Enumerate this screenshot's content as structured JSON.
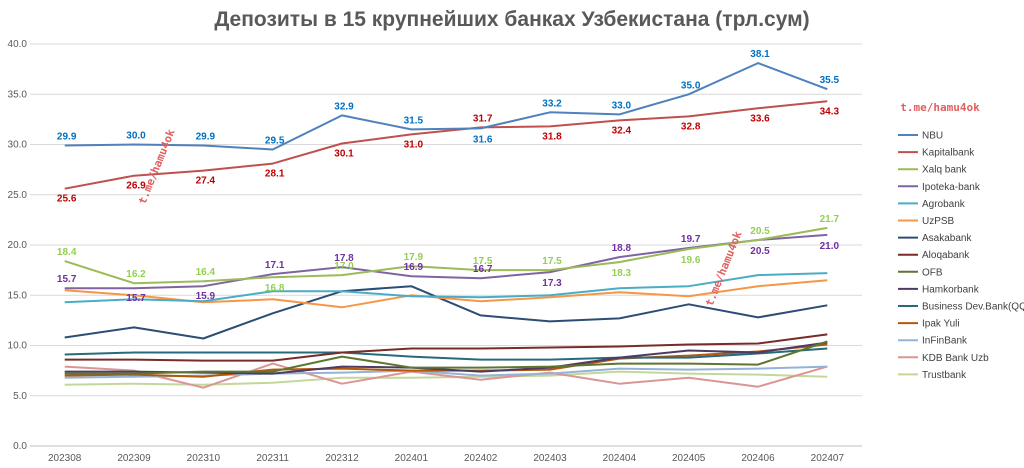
{
  "chart_data": {
    "type": "line",
    "title": "Депозиты в 15 крупнейших банках Узбекистана (трл.сум)",
    "xlabel": "",
    "ylabel": "",
    "ylim": [
      0,
      40
    ],
    "yticks": [
      "0.0",
      "5.0",
      "10.0",
      "15.0",
      "20.0",
      "25.0",
      "30.0",
      "35.0",
      "40.0"
    ],
    "grid": true,
    "legend_position": "right",
    "categories": [
      "202308",
      "202309",
      "202310",
      "202311",
      "202312",
      "202401",
      "202402",
      "202403",
      "202404",
      "202405",
      "202406",
      "202407"
    ],
    "series": [
      {
        "name": "NBU",
        "color": "#4f81bd",
        "values": [
          29.9,
          30.0,
          29.9,
          29.5,
          32.9,
          31.5,
          31.6,
          33.2,
          33.0,
          35.0,
          38.1,
          35.5
        ],
        "labels": true,
        "label_color": "#0070c0",
        "label_pos": "above"
      },
      {
        "name": "Kapitalbank",
        "color": "#c0504d",
        "values": [
          25.6,
          26.9,
          27.4,
          28.1,
          30.1,
          31.0,
          31.7,
          31.8,
          32.4,
          32.8,
          33.6,
          34.3
        ],
        "labels": true,
        "label_color": "#c00000",
        "label_pos": "below"
      },
      {
        "name": "Xalq bank",
        "color": "#9bbb59",
        "values": [
          18.4,
          16.2,
          16.4,
          16.8,
          17.0,
          17.9,
          17.5,
          17.5,
          18.3,
          19.6,
          20.5,
          21.7
        ],
        "labels": true,
        "label_color": "#92d050",
        "label_pos": "above"
      },
      {
        "name": "Ipoteka-bank",
        "color": "#8064a2",
        "values": [
          15.7,
          15.7,
          15.9,
          17.1,
          17.8,
          16.9,
          16.7,
          17.3,
          18.8,
          19.7,
          20.5,
          21.0
        ],
        "labels": true,
        "label_color": "#7030a0",
        "label_pos": "above"
      },
      {
        "name": "Agrobank",
        "color": "#4bacc6",
        "values": [
          14.3,
          14.6,
          14.4,
          15.4,
          15.4,
          14.9,
          14.8,
          15.0,
          15.7,
          15.9,
          17.0,
          17.2
        ],
        "labels": false
      },
      {
        "name": "UzPSB",
        "color": "#f79646",
        "values": [
          15.5,
          15.0,
          14.3,
          14.6,
          13.8,
          15.0,
          14.4,
          14.8,
          15.3,
          14.9,
          15.9,
          16.5
        ],
        "labels": false
      },
      {
        "name": "Asakabank",
        "color": "#2c4d75",
        "values": [
          10.8,
          11.8,
          10.7,
          13.2,
          15.4,
          15.9,
          13.0,
          12.4,
          12.7,
          14.1,
          12.8,
          14.0
        ],
        "labels": false
      },
      {
        "name": "Aloqabank",
        "color": "#772c2a",
        "values": [
          8.6,
          8.6,
          8.5,
          8.5,
          9.3,
          9.7,
          9.7,
          9.8,
          9.9,
          10.1,
          10.2,
          11.1
        ],
        "labels": false
      },
      {
        "name": "OFB",
        "color": "#5f7530",
        "values": [
          7.2,
          7.2,
          7.4,
          7.4,
          8.9,
          7.8,
          7.8,
          7.9,
          8.2,
          8.2,
          8.1,
          10.4
        ],
        "labels": false
      },
      {
        "name": "Hamkorbank",
        "color": "#4d3b62",
        "values": [
          7.4,
          7.4,
          7.3,
          7.2,
          7.9,
          7.8,
          7.4,
          7.8,
          8.8,
          9.5,
          9.3,
          10.3
        ],
        "labels": false
      },
      {
        "name": "Business Dev.Bank(QQB)",
        "color": "#276a7c",
        "values": [
          9.1,
          9.3,
          9.3,
          9.3,
          9.3,
          8.9,
          8.6,
          8.6,
          8.8,
          8.8,
          9.2,
          9.7
        ],
        "labels": false
      },
      {
        "name": "Ipak Yuli",
        "color": "#b65708",
        "values": [
          7.0,
          7.1,
          6.9,
          7.6,
          7.7,
          7.5,
          7.5,
          7.6,
          8.7,
          9.0,
          9.4,
          10.1
        ],
        "labels": false
      },
      {
        "name": "InFinBank",
        "color": "#95b3d7",
        "values": [
          6.8,
          6.9,
          7.0,
          7.2,
          7.3,
          7.5,
          7.0,
          7.2,
          7.7,
          7.6,
          7.7,
          7.9
        ],
        "labels": false
      },
      {
        "name": "KDB Bank Uzb",
        "color": "#da9694",
        "values": [
          7.9,
          7.5,
          5.8,
          8.2,
          6.2,
          7.4,
          6.6,
          7.3,
          6.2,
          6.8,
          5.9,
          7.9
        ],
        "labels": false
      },
      {
        "name": "Trustbank",
        "color": "#c4d79b",
        "values": [
          6.1,
          6.2,
          6.1,
          6.3,
          6.8,
          6.8,
          6.9,
          7.0,
          7.4,
          7.2,
          7.1,
          6.9
        ],
        "labels": false
      }
    ],
    "watermark": "t.me/hamu4ok"
  }
}
